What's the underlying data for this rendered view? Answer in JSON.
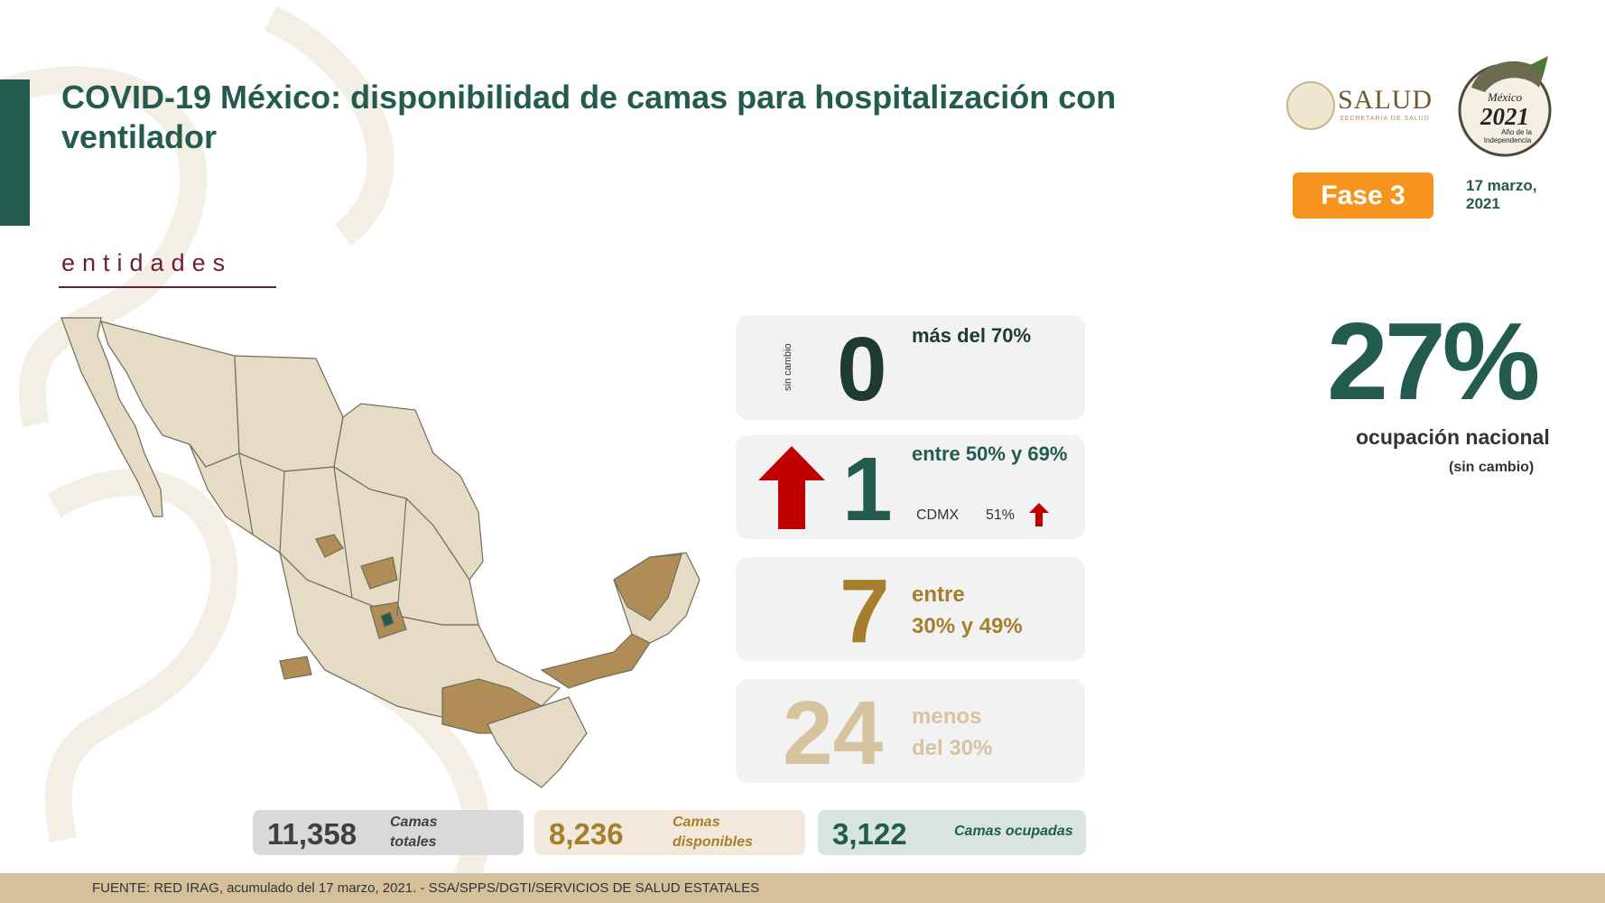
{
  "header": {
    "title": "COVID-19 México: disponibilidad de camas para hospitalización con ventilador",
    "section_label": "entidades",
    "salud_logo_text": "SALUD",
    "salud_logo_sub": "SECRETARÍA DE SALUD",
    "logo_2021_lines": [
      "México",
      "2021",
      "Año de la",
      "Independencia"
    ],
    "phase_badge": "Fase 3",
    "date": "17 marzo, 2021"
  },
  "national": {
    "occupancy_pct": "27%",
    "label": "ocupación nacional",
    "change": "(sin cambio)"
  },
  "categories": [
    {
      "count": "0",
      "label": "más del 70%",
      "trend": "sin cambio",
      "color": "#1f3a32",
      "bg": "#f2f2f2"
    },
    {
      "count": "1",
      "label": "entre 50% y 69%",
      "trend": "up",
      "color": "#235b4e",
      "bg": "#f2f2f2",
      "detail_state": "CDMX",
      "detail_pct": "51%"
    },
    {
      "count": "7",
      "label": "entre\n30% y 49%",
      "color": "#a57f2c",
      "bg": "#f2f2f2"
    },
    {
      "count": "24",
      "label": "menos\ndel 30%",
      "color": "#d6c3a0",
      "bg": "#f2f2f2"
    }
  ],
  "totals": {
    "total": {
      "value": "11,358",
      "label": "Camas\ntotales",
      "bg": "#d9d9d9",
      "color": "#404040"
    },
    "available": {
      "value": "8,236",
      "label": "Camas\ndisponibles",
      "bg": "#f2e9dc",
      "color": "#a57f2c"
    },
    "occupied": {
      "value": "3,122",
      "label": "Camas ocupadas",
      "bg": "#d7e4df",
      "color": "#235b4e"
    }
  },
  "footer": {
    "source": "FUENTE: RED IRAG, acumulado del 17 marzo, 2021. -  SSA/SPPS/DGTI/SERVICIOS DE SALUD ESTATALES"
  },
  "colors": {
    "brand_green": "#235b4e",
    "guinda": "#6b1d3b",
    "orange": "#f7941d",
    "up_arrow": "#c00000",
    "map_low": "#e6dcc6",
    "map_mid": "#b08d56",
    "map_high": "#235b4e"
  }
}
